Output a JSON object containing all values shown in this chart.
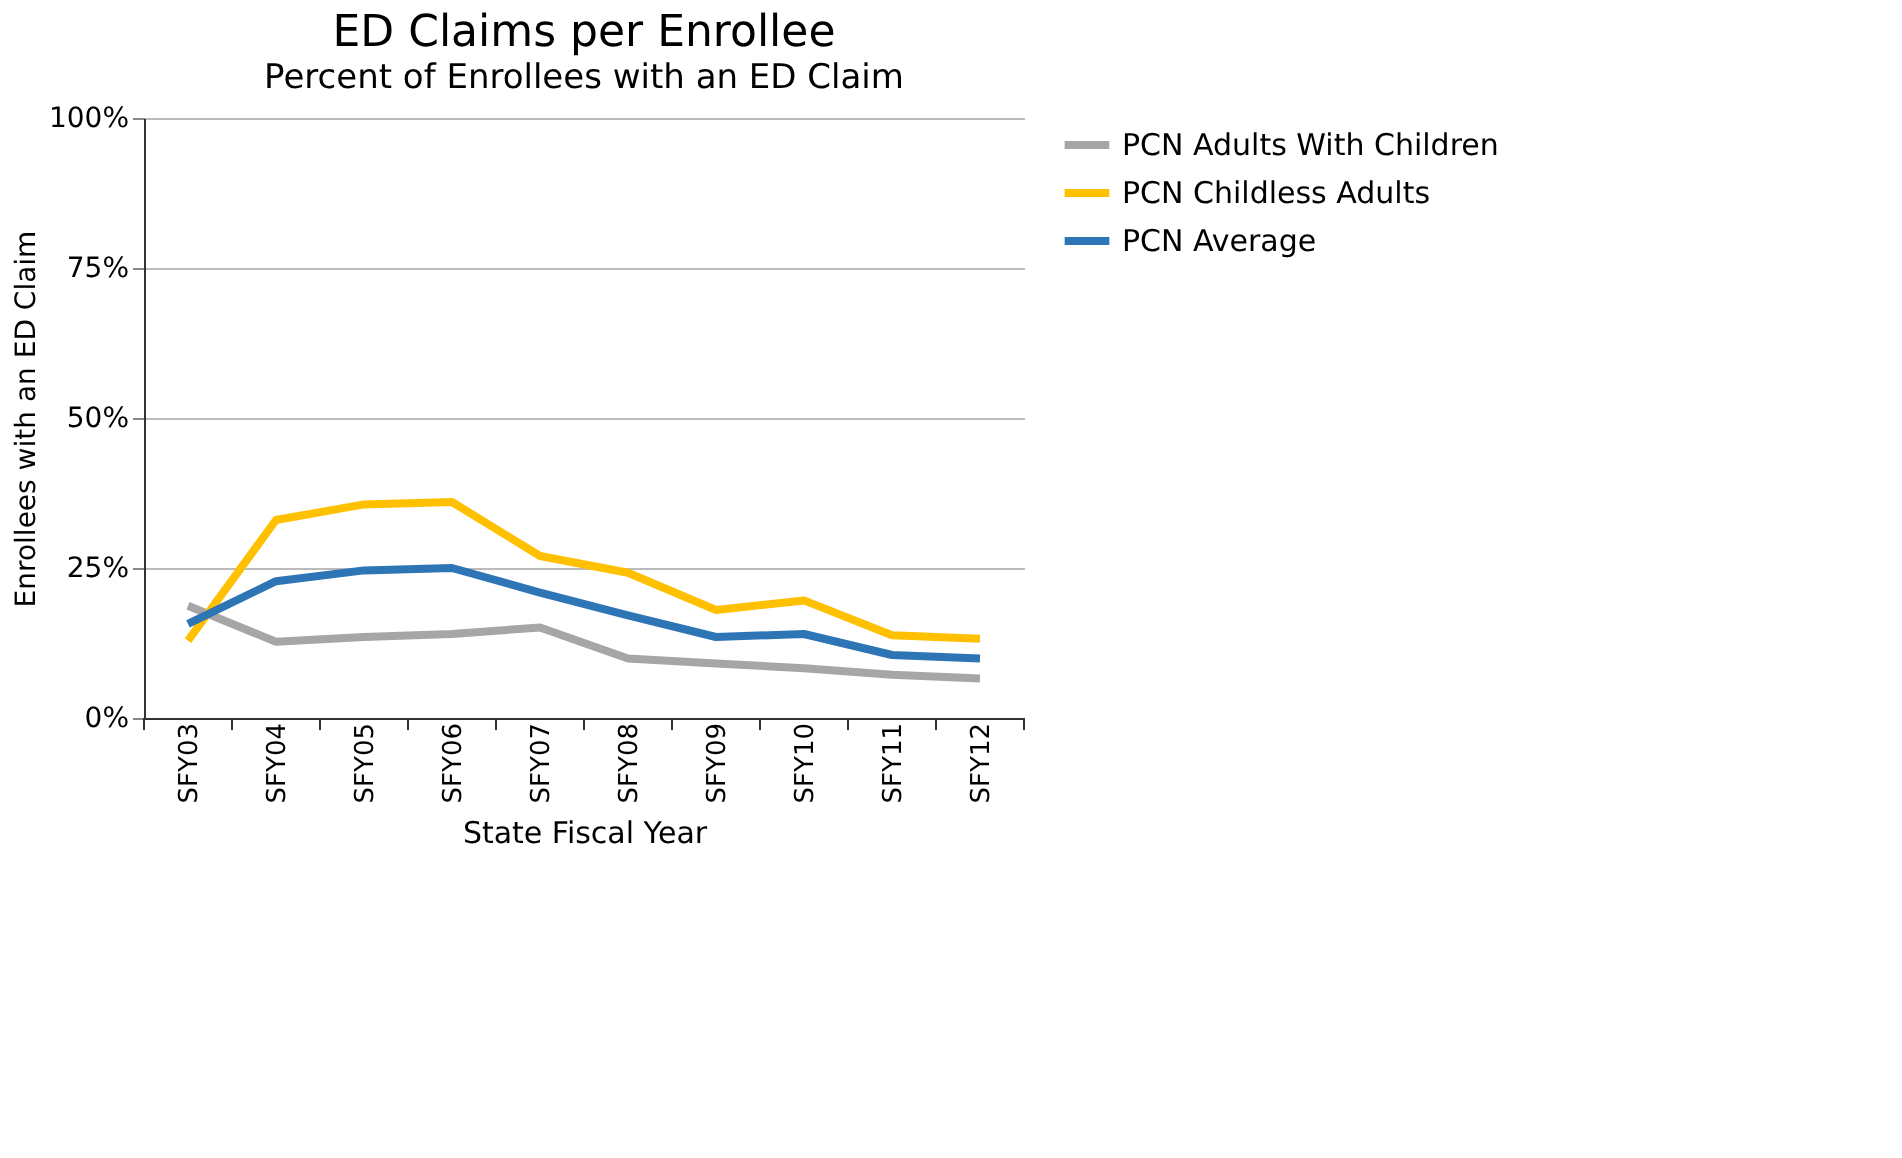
{
  "chart_data": {
    "type": "line",
    "title": "ED Claims per Enrollee",
    "subtitle": "Percent of Enrollees with an ED Claim",
    "xlabel": "State Fiscal Year",
    "ylabel": "Enrollees with an ED Claim",
    "categories": [
      "SFY03",
      "SFY04",
      "SFY05",
      "SFY06",
      "SFY07",
      "SFY08",
      "SFY09",
      "SFY10",
      "SFY11",
      "SFY12"
    ],
    "series": [
      {
        "name": "PCN Adults With Children",
        "color": "#a6a6a6",
        "values": [
          18.7,
          12.7,
          13.5,
          14,
          15.1,
          9.9,
          9.1,
          8.3,
          7.2,
          6.6
        ]
      },
      {
        "name": "PCN Childless Adults",
        "color": "#ffc000",
        "values": [
          12.9,
          33,
          35.6,
          36,
          27,
          24.2,
          18,
          19.6,
          13.8,
          13.2
        ]
      },
      {
        "name": "PCN Average",
        "color": "#2e75b6",
        "values": [
          15.7,
          22.8,
          24.6,
          25,
          20.9,
          17.1,
          13.5,
          14,
          10.5,
          9.9
        ]
      }
    ],
    "ylim": [
      0,
      100
    ],
    "yticks": [
      {
        "value": 0,
        "label": "0%"
      },
      {
        "value": 25,
        "label": "25%"
      },
      {
        "value": 50,
        "label": "50%"
      },
      {
        "value": 75,
        "label": "75%"
      },
      {
        "value": 100,
        "label": "100%"
      }
    ],
    "grid": "y",
    "legend": "right",
    "marker": "none",
    "line_style": "solid"
  }
}
